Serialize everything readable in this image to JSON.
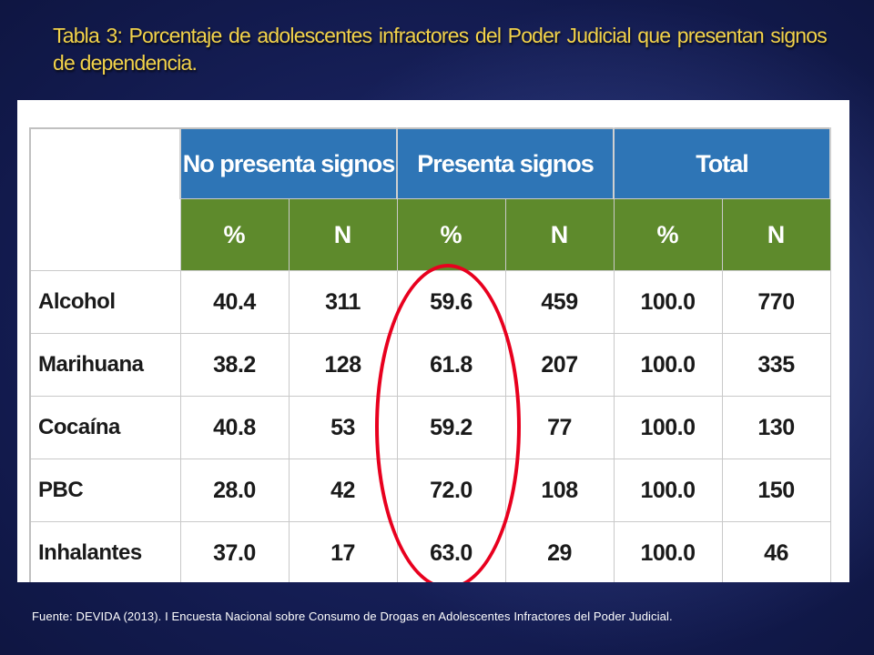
{
  "title": "Tabla 3: Porcentaje de adolescentes infractores del Poder Judicial que presentan signos de dependencia.",
  "table": {
    "groups": [
      "No presenta signos",
      "Presenta signos",
      "Total"
    ],
    "subheaders": [
      "%",
      "N",
      "%",
      "N",
      "%",
      "N"
    ],
    "rows": [
      {
        "label": "Alcohol",
        "values": [
          "40.4",
          "311",
          "59.6",
          "459",
          "100.0",
          "770"
        ]
      },
      {
        "label": "Marihuana",
        "values": [
          "38.2",
          "128",
          "61.8",
          "207",
          "100.0",
          "335"
        ]
      },
      {
        "label": "Cocaína",
        "values": [
          "40.8",
          "53",
          "59.2",
          "77",
          "100.0",
          "130"
        ]
      },
      {
        "label": "PBC",
        "values": [
          "28.0",
          "42",
          "72.0",
          "108",
          "100.0",
          "150"
        ]
      },
      {
        "label": "Inhalantes",
        "values": [
          "37.0",
          "17",
          "63.0",
          "29",
          "100.0",
          "46"
        ]
      }
    ]
  },
  "highlight": {
    "column_group": "Presenta signos",
    "column": "%",
    "color": "#e8001e"
  },
  "colors": {
    "title": "#f2d24a",
    "group_header": "#2e75b6",
    "sub_header": "#5e8a2c",
    "background": "#121a4d"
  },
  "source": "Fuente: DEVIDA (2013). I Encuesta Nacional  sobre Consumo de Drogas  en Adolescentes Infractores del Poder Judicial."
}
